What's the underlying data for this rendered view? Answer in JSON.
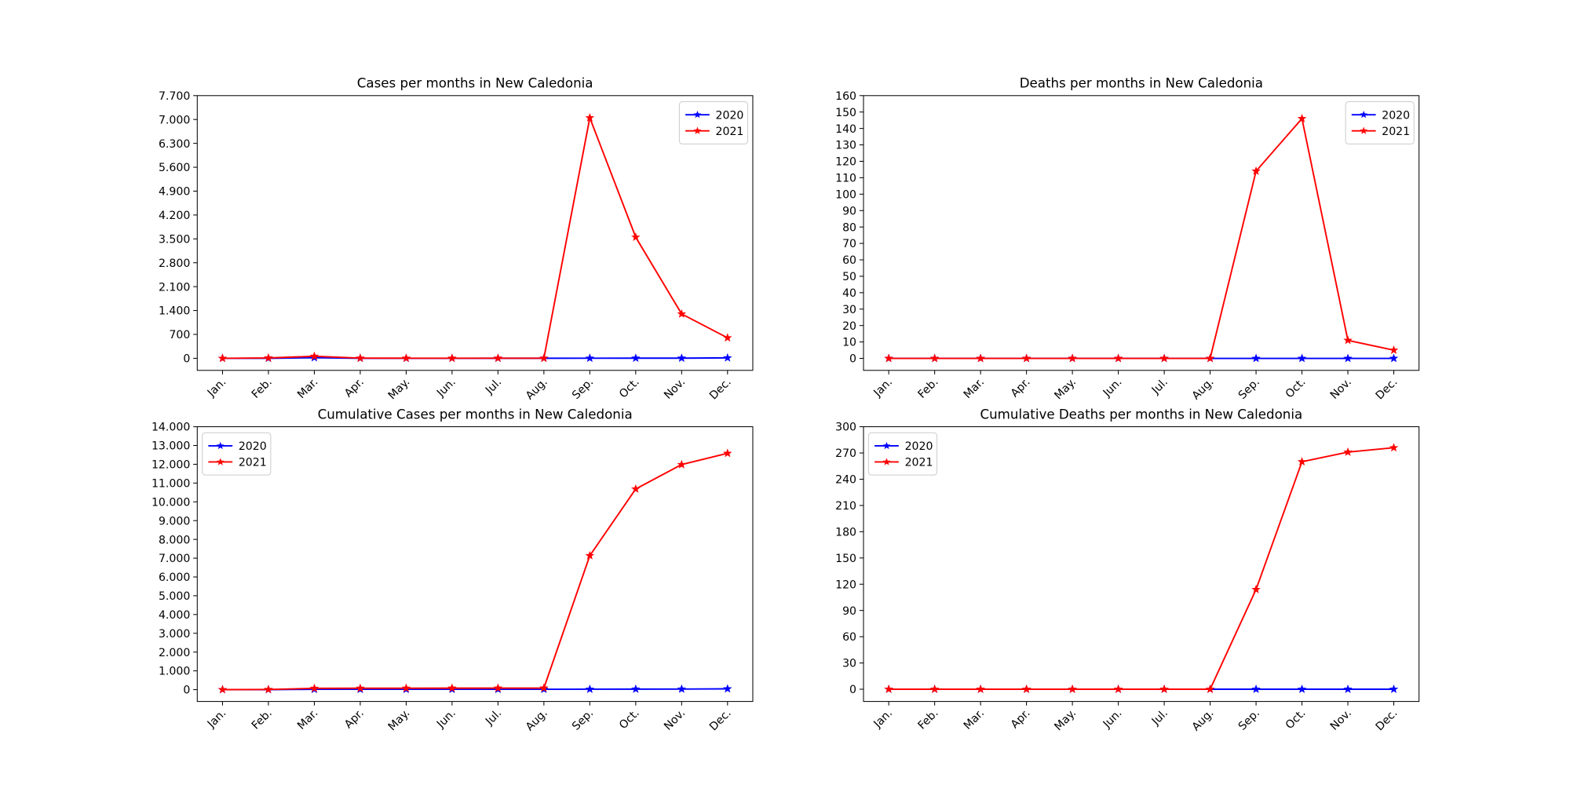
{
  "chart_data": [
    {
      "type": "line",
      "title": "Cases per months in New Caledonia",
      "categories": [
        "Jan.",
        "Feb.",
        "Mar.",
        "Apr.",
        "May.",
        "Jun.",
        "Jul.",
        "Aug.",
        "Sep.",
        "Oct.",
        "Nov.",
        "Dec."
      ],
      "series": [
        {
          "name": "2020",
          "color": "#0000ff",
          "values": [
            0,
            0,
            18,
            0,
            0,
            0,
            1,
            1,
            3,
            4,
            4,
            12
          ]
        },
        {
          "name": "2021",
          "color": "#ff0000",
          "values": [
            0,
            10,
            60,
            5,
            3,
            2,
            3,
            2,
            7050,
            3550,
            1300,
            600
          ]
        }
      ],
      "ylim": [
        -354,
        7700
      ],
      "yticks": [
        0,
        700,
        {
          "value": 1400,
          "label": "1.400"
        },
        {
          "value": 2100,
          "label": "2.100"
        },
        {
          "value": 2800,
          "label": "2.800"
        },
        {
          "value": 3500,
          "label": "3.500"
        },
        {
          "value": 4200,
          "label": "4.200"
        },
        {
          "value": 4900,
          "label": "4.900"
        },
        {
          "value": 5600,
          "label": "5.600"
        },
        {
          "value": 6300,
          "label": "6.300"
        },
        {
          "value": 7000,
          "label": "7.000"
        },
        {
          "value": 7700,
          "label": "7.700"
        }
      ],
      "legend": "upper right"
    },
    {
      "type": "line",
      "title": "Deaths per months in New Caledonia",
      "categories": [
        "Jan.",
        "Feb.",
        "Mar.",
        "Apr.",
        "May.",
        "Jun.",
        "Jul.",
        "Aug.",
        "Sep.",
        "Oct.",
        "Nov.",
        "Dec."
      ],
      "series": [
        {
          "name": "2020",
          "color": "#0000ff",
          "values": [
            0,
            0,
            0,
            0,
            0,
            0,
            0,
            0,
            0,
            0,
            0,
            0
          ]
        },
        {
          "name": "2021",
          "color": "#ff0000",
          "values": [
            0,
            0,
            0,
            0,
            0,
            0,
            0,
            0,
            114,
            146,
            11,
            5
          ]
        }
      ],
      "ylim": [
        -7.3,
        160
      ],
      "yticks": [
        0,
        10,
        20,
        30,
        40,
        50,
        60,
        70,
        80,
        90,
        100,
        110,
        120,
        130,
        140,
        150,
        160
      ],
      "legend": "upper right"
    },
    {
      "type": "line",
      "title": "Cumulative Cases per months in New Caledonia",
      "categories": [
        "Jan.",
        "Feb.",
        "Mar.",
        "Apr.",
        "May.",
        "Jun.",
        "Jul.",
        "Aug.",
        "Sep.",
        "Oct.",
        "Nov.",
        "Dec."
      ],
      "series": [
        {
          "name": "2020",
          "color": "#0000ff",
          "values": [
            0,
            0,
            18,
            18,
            18,
            18,
            19,
            20,
            23,
            27,
            31,
            43
          ]
        },
        {
          "name": "2021",
          "color": "#ff0000",
          "values": [
            0,
            10,
            70,
            75,
            78,
            80,
            83,
            85,
            7135,
            10685,
            11985,
            12585
          ]
        }
      ],
      "ylim": [
        -630,
        14000
      ],
      "yticks": [
        0,
        {
          "value": 1000,
          "label": "1.000"
        },
        {
          "value": 2000,
          "label": "2.000"
        },
        {
          "value": 3000,
          "label": "3.000"
        },
        {
          "value": 4000,
          "label": "4.000"
        },
        {
          "value": 5000,
          "label": "5.000"
        },
        {
          "value": 6000,
          "label": "6.000"
        },
        {
          "value": 7000,
          "label": "7.000"
        },
        {
          "value": 8000,
          "label": "8.000"
        },
        {
          "value": 9000,
          "label": "9.000"
        },
        {
          "value": 10000,
          "label": "10.000"
        },
        {
          "value": 11000,
          "label": "11.000"
        },
        {
          "value": 12000,
          "label": "12.000"
        },
        {
          "value": 13000,
          "label": "13.000"
        },
        {
          "value": 14000,
          "label": "14.000"
        }
      ],
      "legend": "upper left"
    },
    {
      "type": "line",
      "title": "Cumulative Deaths per months in New Caledonia",
      "categories": [
        "Jan.",
        "Feb.",
        "Mar.",
        "Apr.",
        "May.",
        "Jun.",
        "Jul.",
        "Aug.",
        "Sep.",
        "Oct.",
        "Nov.",
        "Dec."
      ],
      "series": [
        {
          "name": "2020",
          "color": "#0000ff",
          "values": [
            0,
            0,
            0,
            0,
            0,
            0,
            0,
            0,
            0,
            0,
            0,
            0
          ]
        },
        {
          "name": "2021",
          "color": "#ff0000",
          "values": [
            0,
            0,
            0,
            0,
            0,
            0,
            0,
            0,
            114,
            260,
            271,
            276
          ]
        }
      ],
      "ylim": [
        -14,
        300
      ],
      "yticks": [
        0,
        30,
        60,
        90,
        120,
        150,
        180,
        210,
        240,
        270,
        300
      ],
      "legend": "upper left"
    }
  ]
}
